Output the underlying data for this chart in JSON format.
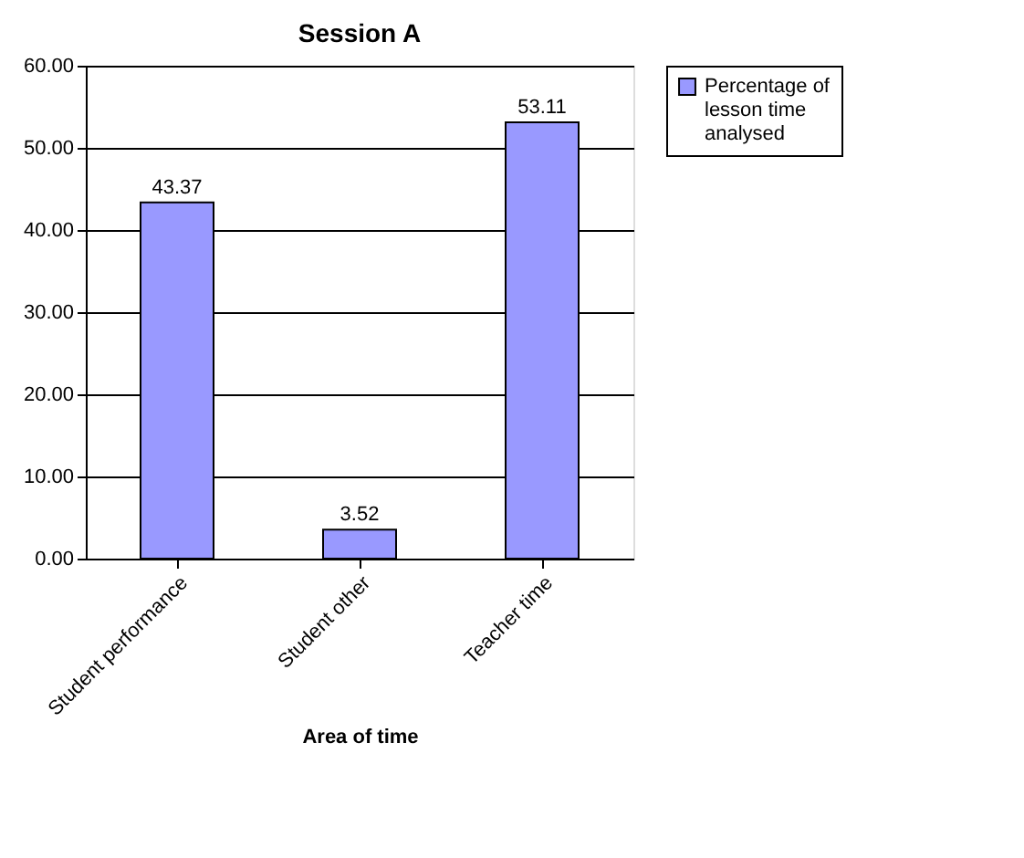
{
  "chart_data": {
    "type": "bar",
    "title": "Session A",
    "xlabel": "Area of time",
    "categories": [
      "Student performance",
      "Student other",
      "Teacher time"
    ],
    "series": [
      {
        "name": "Percentage of lesson time analysed",
        "color": "#9999ff",
        "values": [
          43.37,
          3.52,
          53.11
        ]
      }
    ],
    "ylim": [
      0,
      60
    ],
    "yticks": [
      {
        "value": 0,
        "label": "0.00"
      },
      {
        "value": 10,
        "label": "10.00"
      },
      {
        "value": 20,
        "label": "20.00"
      },
      {
        "value": 30,
        "label": "30.00"
      },
      {
        "value": 40,
        "label": "40.00"
      },
      {
        "value": 50,
        "label": "50.00"
      },
      {
        "value": 60,
        "label": "60.00"
      }
    ],
    "grid": "y",
    "legend": "right",
    "data_labels": true
  }
}
